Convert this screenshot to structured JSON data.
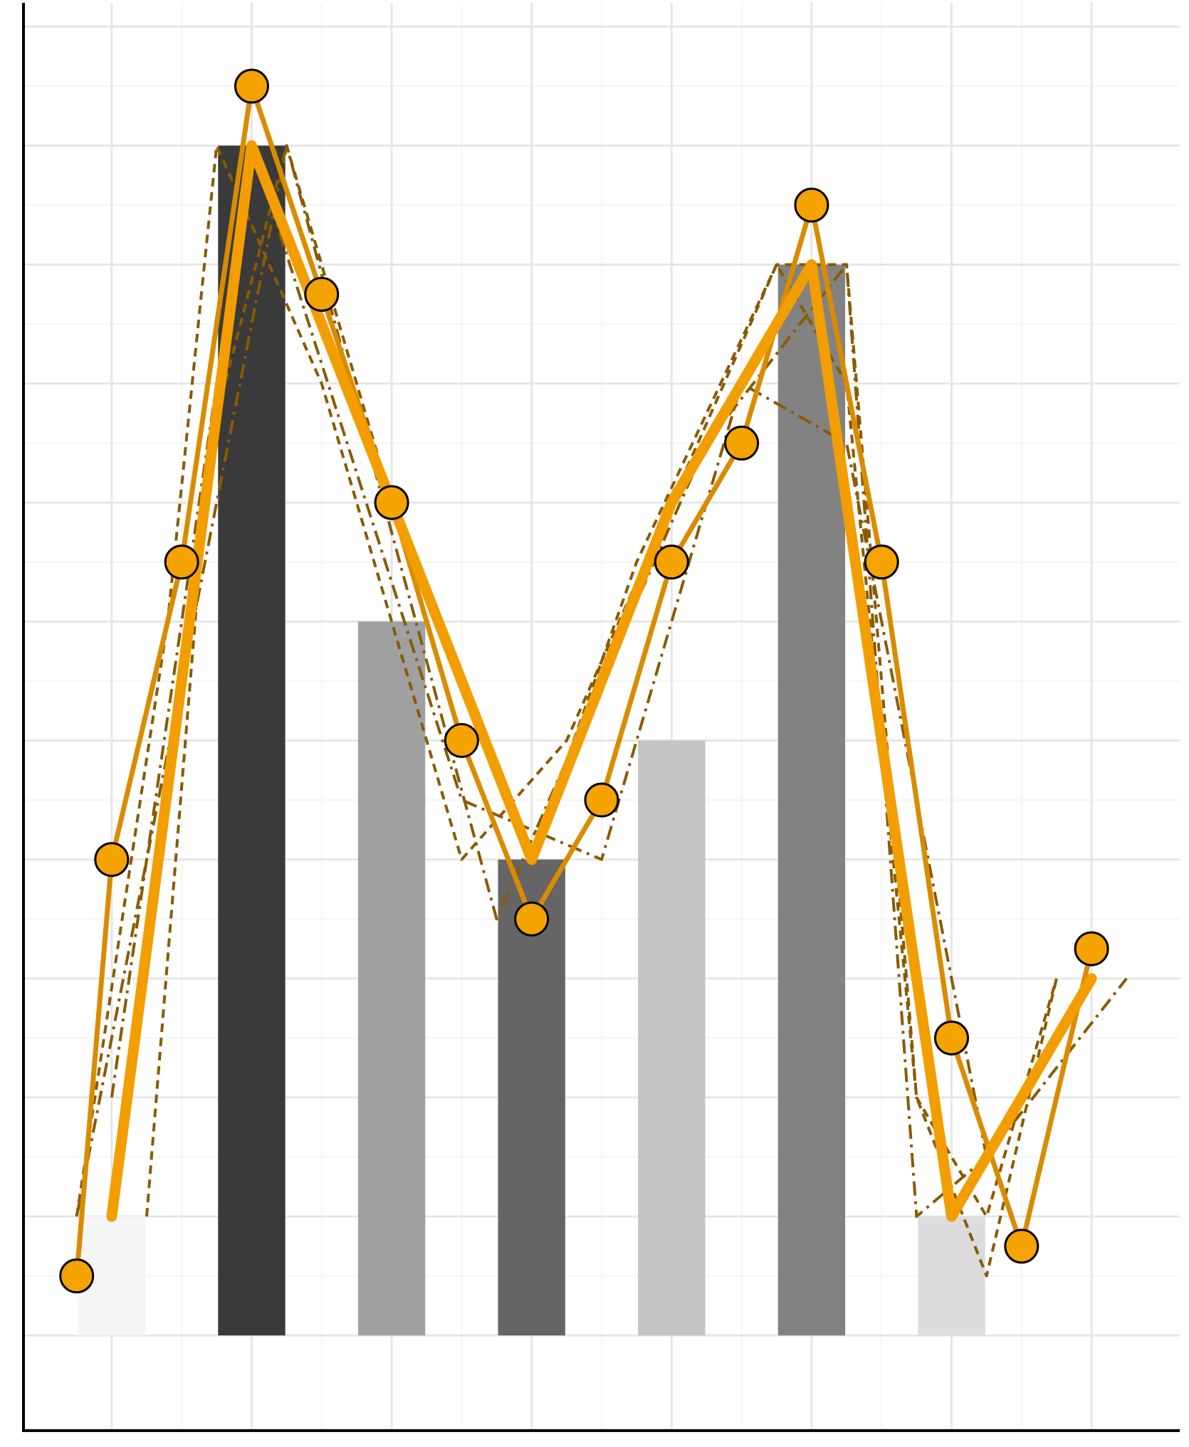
{
  "chart_data": {
    "type": "bar",
    "title": "",
    "xlabel": "",
    "ylabel": "",
    "xlim": [
      -0.63,
      7.63
    ],
    "ylim": [
      -0.8,
      11.2
    ],
    "grid": true,
    "x_major_ticks": [
      0,
      1,
      2,
      3,
      4,
      5,
      6,
      7
    ],
    "y_major_ticks": [
      0,
      1,
      2,
      3,
      4,
      5,
      6,
      7,
      8,
      9,
      10,
      11
    ],
    "bars": {
      "x": [
        0,
        1,
        2,
        3,
        4,
        5,
        6
      ],
      "values": [
        1,
        10,
        6,
        4,
        5,
        9,
        1
      ],
      "colors": [
        "#f5f5f5",
        "#3a3a3a",
        "#a0a0a0",
        "#656565",
        "#c4c4c4",
        "#828282",
        "#dcdcdc"
      ],
      "width": 0.48
    },
    "series": [
      {
        "style": "thick-solid",
        "color": "#f29e00",
        "x": [
          0,
          1,
          2,
          3,
          4,
          5,
          6,
          7
        ],
        "y": [
          1,
          10,
          7,
          4,
          7,
          9,
          1,
          3
        ]
      },
      {
        "style": "solid-markers",
        "color": "#d98c00",
        "marker_color": "#f5a300",
        "x": [
          -0.25,
          0,
          0.5,
          1,
          1.5,
          2,
          2.5,
          3,
          3.5,
          4,
          4.5,
          5,
          5.5,
          6,
          6.5,
          7
        ],
        "y": [
          0.5,
          4,
          6.5,
          10.5,
          8.75,
          7,
          5,
          3.5,
          4.5,
          6.5,
          7.5,
          9.5,
          6.5,
          2.5,
          0.75,
          3.25
        ]
      },
      {
        "style": "dashed",
        "color": "#8a5a00",
        "x": [
          0.25,
          0.7,
          1.25,
          2,
          3,
          3.75,
          4.75,
          5.25,
          5.75,
          6.25,
          6.75
        ],
        "y": [
          1,
          7.5,
          10,
          7,
          4,
          6.5,
          9,
          9,
          2,
          1,
          3
        ]
      },
      {
        "style": "dashed",
        "color": "#8a5a00",
        "x": [
          -0.25,
          0.4,
          0.75,
          1.5,
          2.5,
          3.25,
          4,
          4.75,
          5.25,
          5.75,
          6.25,
          6.75
        ],
        "y": [
          1,
          6,
          10,
          8,
          4,
          5,
          7,
          9,
          8,
          2,
          0.5,
          3
        ]
      },
      {
        "style": "dash-dot",
        "color": "#8a5a00",
        "x": [
          -0.25,
          1.25,
          2.75,
          4.25,
          5.25,
          5.75,
          6.25,
          7.25
        ],
        "y": [
          1,
          10,
          3.5,
          7.5,
          9,
          1,
          1.5,
          3
        ]
      },
      {
        "style": "dash-dot",
        "color": "#8a5a00",
        "x": [
          0,
          1,
          2.5,
          3.5,
          4.5,
          5.25,
          6.25,
          6.75
        ],
        "y": [
          2,
          10,
          4.5,
          4,
          8,
          7.5,
          1.5,
          2.5
        ]
      }
    ]
  }
}
